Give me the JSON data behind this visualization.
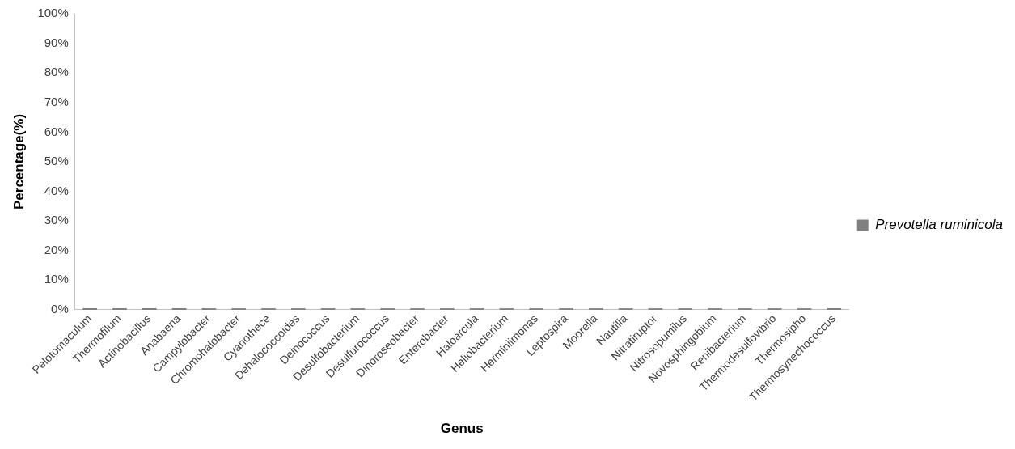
{
  "chart_data": {
    "type": "bar",
    "xlabel": "Genus",
    "ylabel": "Percentage(%)",
    "categories": [
      "Pelotomaculum",
      "Thermofilum",
      "Actinobacillus",
      "Anabaena",
      "Campylobacter",
      "Chromohalobacter",
      "Cyanothece",
      "Dehalococcoides",
      "Deinococcus",
      "Desulfobacterium",
      "Desulfurococcus",
      "Dinoroseobacter",
      "Enterobacter",
      "Haloarcula",
      "Heliobacterium",
      "Herminiimonas",
      "Leptospira",
      "Moorella",
      "Nautilia",
      "Nitratiruptor",
      "Nitrosopumilus",
      "Novosphingobium",
      "Renibacterium",
      "Thermodesulfovibrio",
      "Thermosipho",
      "Thermosynechococcus"
    ],
    "series": [
      {
        "name": "Prevotella ruminicola",
        "color": "#808080",
        "values": [
          0.5,
          0.5,
          0.5,
          0.5,
          0.5,
          0.5,
          0.5,
          0.5,
          0.5,
          0.5,
          0.5,
          0.5,
          0.5,
          0.5,
          0.5,
          0.5,
          0.5,
          0.5,
          0.5,
          0.5,
          0.5,
          0.5,
          0.5,
          0.5,
          0.5,
          0.5
        ]
      }
    ],
    "ylim": [
      0,
      100
    ],
    "yticks": [
      {
        "value": 0,
        "label": "0%"
      },
      {
        "value": 10,
        "label": "10%"
      },
      {
        "value": 20,
        "label": "20%"
      },
      {
        "value": 30,
        "label": "30%"
      },
      {
        "value": 40,
        "label": "40%"
      },
      {
        "value": 50,
        "label": "50%"
      },
      {
        "value": 60,
        "label": "60%"
      },
      {
        "value": 70,
        "label": "70%"
      },
      {
        "value": 80,
        "label": "80%"
      },
      {
        "value": 90,
        "label": "90%"
      },
      {
        "value": 100,
        "label": "100%"
      }
    ],
    "grid": false,
    "legend": "right"
  }
}
